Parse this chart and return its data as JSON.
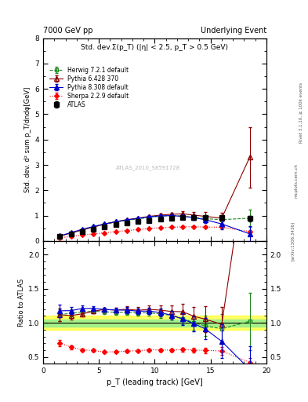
{
  "title_left": "7000 GeV pp",
  "title_right": "Underlying Event",
  "ylabel_main": "Std. dev. d² sum p_T/dndφ[GeV]",
  "ylabel_ratio": "Ratio to ATLAS",
  "xlabel": "p_T (leading track) [GeV]",
  "subtitle": "Std. dev.Σ(p_T) (|η| < 2.5, p_T > 0.5 GeV)",
  "right_label_top": "Rivet 3.1.10, ≥ 100k events",
  "right_label_bot": "mcplots.cern.ch [arXiv:1306.3436]",
  "watermark": "ATLAS_2010_S8591728",
  "xlim": [
    0,
    20
  ],
  "ylim_main": [
    0,
    8
  ],
  "ylim_ratio": [
    0.4,
    2.2
  ],
  "atlas_x": [
    1.5,
    2.5,
    3.5,
    4.5,
    5.5,
    6.5,
    7.5,
    8.5,
    9.5,
    10.5,
    11.5,
    12.5,
    13.5,
    14.5,
    16.0,
    18.5
  ],
  "atlas_y": [
    0.17,
    0.28,
    0.38,
    0.47,
    0.56,
    0.64,
    0.7,
    0.76,
    0.81,
    0.86,
    0.9,
    0.92,
    0.93,
    0.92,
    0.92,
    0.88
  ],
  "atlas_yerr": [
    0.01,
    0.01,
    0.01,
    0.01,
    0.01,
    0.01,
    0.02,
    0.02,
    0.02,
    0.03,
    0.03,
    0.04,
    0.05,
    0.06,
    0.08,
    0.12
  ],
  "herwig_x": [
    1.5,
    2.5,
    3.5,
    4.5,
    5.5,
    6.5,
    7.5,
    8.5,
    9.5,
    10.5,
    11.5,
    12.5,
    13.5,
    14.5,
    16.0,
    18.5
  ],
  "herwig_y": [
    0.19,
    0.32,
    0.44,
    0.55,
    0.65,
    0.74,
    0.81,
    0.87,
    0.93,
    0.97,
    1.0,
    0.98,
    0.93,
    0.88,
    0.84,
    0.9
  ],
  "herwig_yerr": [
    0.01,
    0.01,
    0.01,
    0.01,
    0.01,
    0.02,
    0.02,
    0.02,
    0.03,
    0.04,
    0.05,
    0.07,
    0.09,
    0.12,
    0.18,
    0.35
  ],
  "pythia6_x": [
    1.5,
    2.5,
    3.5,
    4.5,
    5.5,
    6.5,
    7.5,
    8.5,
    9.5,
    10.5,
    11.5,
    12.5,
    13.5,
    14.5,
    16.0,
    18.5
  ],
  "pythia6_y": [
    0.19,
    0.31,
    0.43,
    0.55,
    0.67,
    0.76,
    0.84,
    0.9,
    0.97,
    1.02,
    1.05,
    1.07,
    1.02,
    0.97,
    0.9,
    3.3
  ],
  "pythia6_yerr": [
    0.01,
    0.01,
    0.01,
    0.01,
    0.01,
    0.02,
    0.02,
    0.03,
    0.04,
    0.05,
    0.07,
    0.09,
    0.11,
    0.16,
    0.22,
    1.2
  ],
  "pythia8_x": [
    1.5,
    2.5,
    3.5,
    4.5,
    5.5,
    6.5,
    7.5,
    8.5,
    9.5,
    10.5,
    11.5,
    12.5,
    13.5,
    14.5,
    16.0,
    18.5
  ],
  "pythia8_y": [
    0.2,
    0.33,
    0.46,
    0.57,
    0.67,
    0.76,
    0.83,
    0.89,
    0.95,
    0.99,
    1.0,
    0.97,
    0.92,
    0.84,
    0.67,
    0.28
  ],
  "pythia8_yerr": [
    0.01,
    0.01,
    0.01,
    0.01,
    0.01,
    0.02,
    0.02,
    0.02,
    0.03,
    0.04,
    0.05,
    0.07,
    0.09,
    0.13,
    0.22,
    0.3
  ],
  "sherpa_x": [
    1.5,
    2.5,
    3.5,
    4.5,
    5.5,
    6.5,
    7.5,
    8.5,
    9.5,
    10.5,
    11.5,
    12.5,
    13.5,
    14.5,
    16.0,
    18.5
  ],
  "sherpa_y": [
    0.12,
    0.18,
    0.23,
    0.28,
    0.32,
    0.37,
    0.41,
    0.45,
    0.49,
    0.52,
    0.54,
    0.56,
    0.56,
    0.55,
    0.54,
    0.37
  ],
  "sherpa_yerr": [
    0.004,
    0.004,
    0.004,
    0.004,
    0.004,
    0.005,
    0.005,
    0.005,
    0.006,
    0.007,
    0.008,
    0.01,
    0.012,
    0.013,
    0.018,
    0.025
  ],
  "atlas_color": "#000000",
  "herwig_color": "#228B22",
  "pythia6_color": "#8B0000",
  "pythia8_color": "#0000CD",
  "sherpa_color": "#FF0000",
  "band_yellow": [
    0.9,
    1.1
  ],
  "band_green": [
    0.95,
    1.05
  ]
}
